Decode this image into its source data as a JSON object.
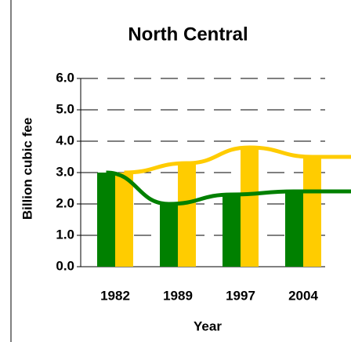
{
  "chart_data": {
    "type": "bar",
    "title": "North Central",
    "y_label": "Billion cubic fee",
    "x_label": "Year",
    "categories": [
      "1982",
      "1989",
      "1997",
      "2004"
    ],
    "series": [
      {
        "color": "#008000",
        "values": [
          3.0,
          2.0,
          2.3,
          2.4
        ]
      },
      {
        "color": "#ffcc00",
        "values": [
          3.0,
          3.3,
          3.8,
          3.5
        ]
      }
    ],
    "ylim": [
      0,
      6
    ],
    "yticks": [
      {
        "value": 0,
        "label": "0.0"
      },
      {
        "value": 1,
        "label": "1.0"
      },
      {
        "value": 2,
        "label": "2.0"
      },
      {
        "value": 3,
        "label": "3.0"
      },
      {
        "value": 4,
        "label": "4.0"
      },
      {
        "value": 5,
        "label": "5.0"
      },
      {
        "value": 6,
        "label": "6.0"
      }
    ],
    "grid": true
  }
}
